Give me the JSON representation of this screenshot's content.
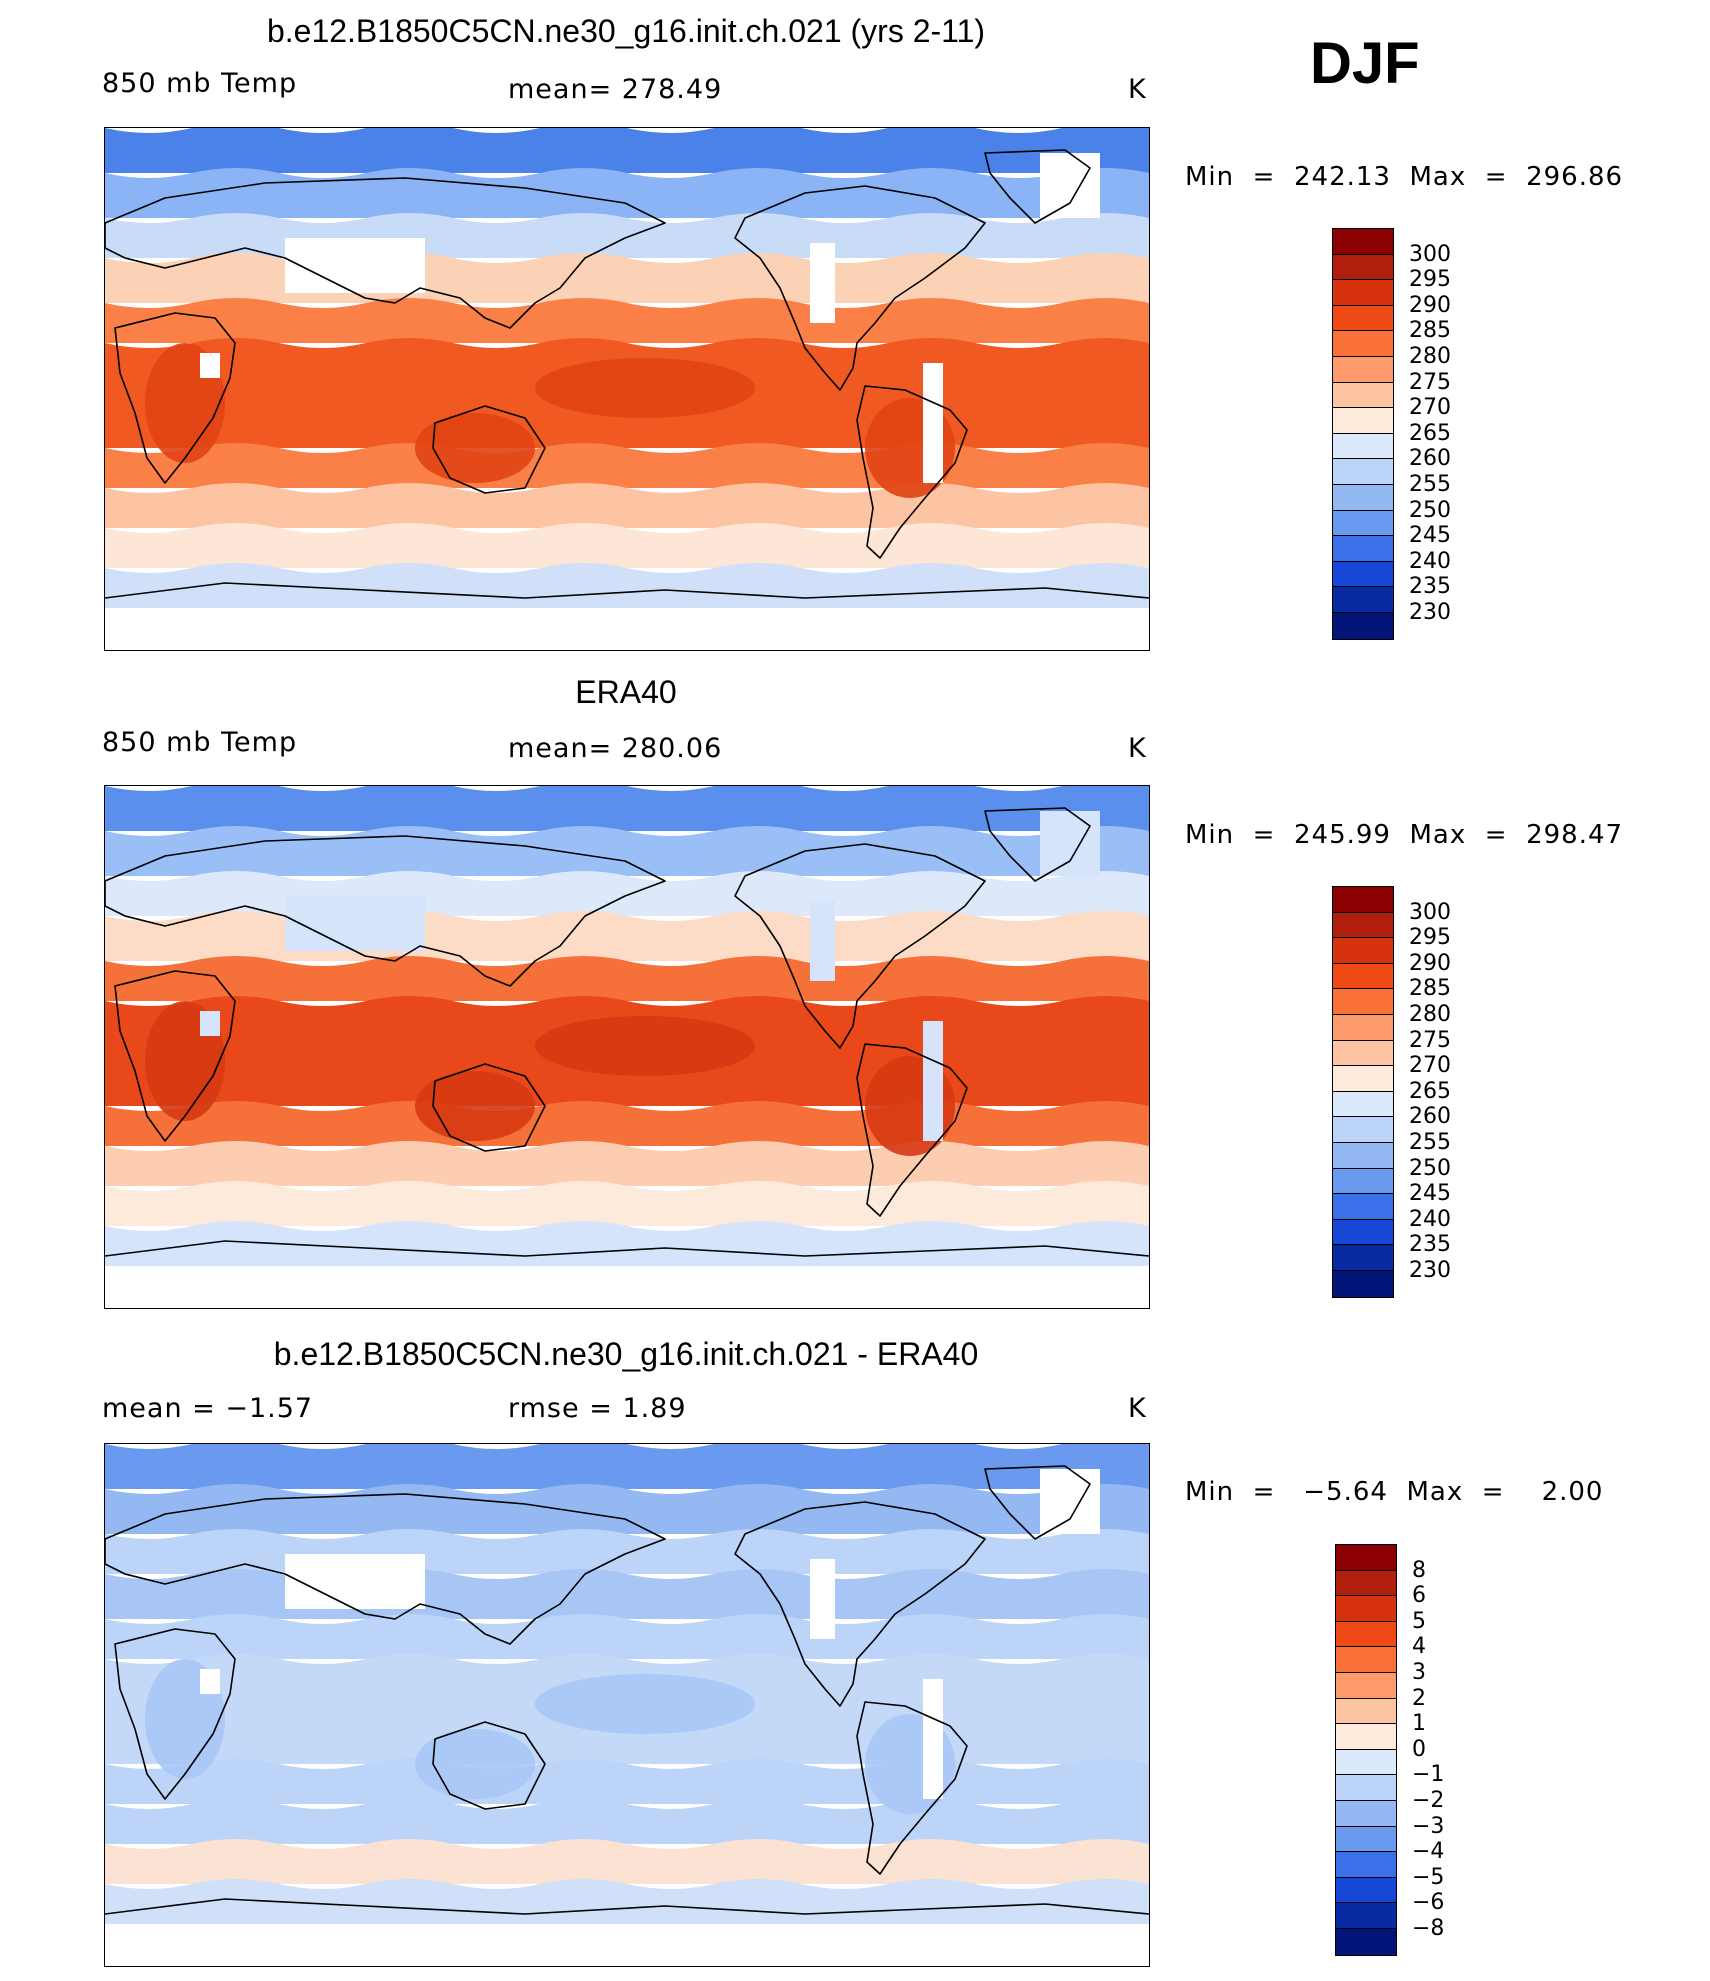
{
  "season_label": "DJF",
  "panels": [
    {
      "title": "b.e12.B1850C5CN.ne30_g16.init.ch.021 (yrs 2-11)",
      "left_label": "850 mb Temp",
      "center_label": "mean=  278.49",
      "units": "K",
      "min_max": "Min  =  242.13  Max  =  296.86",
      "colorbar": {
        "labels": [
          "300",
          "295",
          "290",
          "285",
          "280",
          "275",
          "270",
          "265",
          "260",
          "255",
          "250",
          "245",
          "240",
          "235",
          "230"
        ],
        "colors": [
          "#8b0000",
          "#b01e0e",
          "#d6320e",
          "#ef4a15",
          "#f97038",
          "#fc9a6c",
          "#fdc4a4",
          "#feeadb",
          "#dce9fb",
          "#bcd4f8",
          "#93b8f2",
          "#6a9af0",
          "#3a70e8",
          "#1747d6",
          "#0a2aa4",
          "#031578"
        ]
      },
      "colors": {
        "polar_n": "#4a82ea",
        "high_lat": "#8ab4f5",
        "mid_n": "#c8dcf8",
        "sub_n": "#fbd2b6",
        "warm": "#fa8048",
        "tropics": "#f05a22",
        "hot": "#e14214",
        "sub_s": "#fdc4a4",
        "mid_s": "#fde6d6",
        "polar_s": "#cfe0f8",
        "land_mask": "#ffffff"
      }
    },
    {
      "title": "ERA40",
      "left_label": "850 mb Temp",
      "center_label": "mean=  280.06",
      "units": "K",
      "min_max": "Min  =  245.99  Max  =  298.47",
      "colorbar": {
        "labels": [
          "300",
          "295",
          "290",
          "285",
          "280",
          "275",
          "270",
          "265",
          "260",
          "255",
          "250",
          "245",
          "240",
          "235",
          "230"
        ],
        "colors": [
          "#8b0000",
          "#b01e0e",
          "#d6320e",
          "#ef4a15",
          "#f97038",
          "#fc9a6c",
          "#fdc4a4",
          "#feeadb",
          "#dce9fb",
          "#bcd4f8",
          "#93b8f2",
          "#6a9af0",
          "#3a70e8",
          "#1747d6",
          "#0a2aa4",
          "#031578"
        ]
      },
      "colors": {
        "polar_n": "#5a8fee",
        "high_lat": "#9abff6",
        "mid_n": "#dde9fb",
        "sub_n": "#fcdcc6",
        "warm": "#f6703a",
        "tropics": "#e9481a",
        "hot": "#d63812",
        "sub_s": "#fdcdb2",
        "mid_s": "#feeadb",
        "polar_s": "#d5e4fa",
        "land_mask": "#d5e4fa"
      }
    },
    {
      "title": "b.e12.B1850C5CN.ne30_g16.init.ch.021 - ERA40",
      "left_label": "mean =   −1.57",
      "center_label": "rmse =    1.89",
      "units": "K",
      "min_max": "Min  =   −5.64  Max  =    2.00",
      "colorbar": {
        "labels": [
          "8",
          "6",
          "5",
          "4",
          "3",
          "2",
          "1",
          "0",
          "−1",
          "−2",
          "−3",
          "−4",
          "−5",
          "−6",
          "−8"
        ],
        "colors": [
          "#8b0000",
          "#b01e0e",
          "#d6320e",
          "#ef4a15",
          "#f97038",
          "#fc9a6c",
          "#fdc4a4",
          "#feeadb",
          "#dce9fb",
          "#bcd4f8",
          "#93b8f2",
          "#6a9af0",
          "#3a70e8",
          "#1747d6",
          "#0a2aa4",
          "#031578"
        ]
      },
      "colors": {
        "polar_n": "#6a9af0",
        "high_lat": "#93b8f2",
        "mid_n": "#bcd4f8",
        "sub_n": "#a8c6f5",
        "warm": "#bcd4f8",
        "tropics": "#c4d9f8",
        "hot": "#a8c6f5",
        "sub_s": "#bcd4f8",
        "mid_s": "#fbe2d2",
        "polar_s": "#cfe0f8",
        "land_mask": "#ffffff"
      }
    }
  ]
}
